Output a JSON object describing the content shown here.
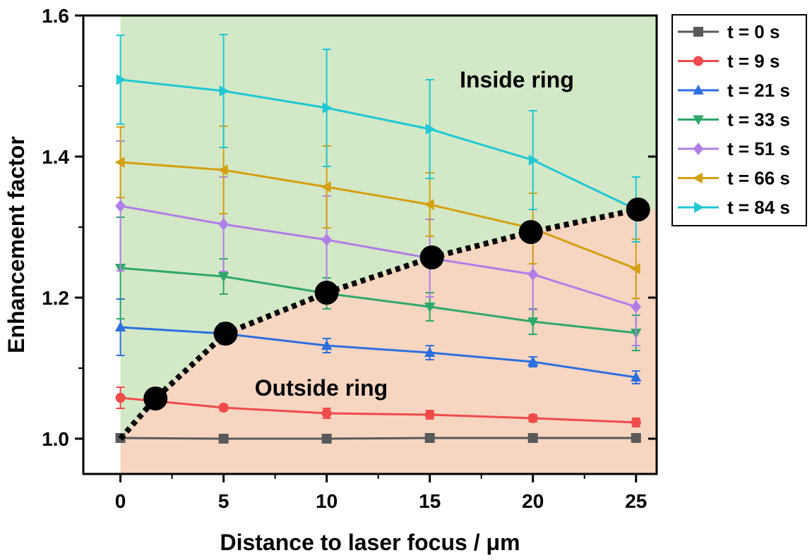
{
  "chart_data": {
    "type": "line",
    "xlabel": "Distance to laser focus / μm",
    "ylabel": "Enhancement factor",
    "xlim": [
      -1.8,
      26
    ],
    "ylim": [
      0.95,
      1.6
    ],
    "x": [
      0,
      5,
      10,
      15,
      20,
      25
    ],
    "x_ticks": [
      "0",
      "5",
      "10",
      "15",
      "20",
      "25"
    ],
    "y_ticks": [
      "1.0",
      "1.2",
      "1.4",
      "1.6"
    ],
    "grid": false,
    "legend_position": "outside-right",
    "series": [
      {
        "name": "t = 0 s",
        "color": "#595959",
        "marker": "square",
        "values": [
          1.001,
          1.0,
          1.0,
          1.001,
          1.001,
          1.001
        ],
        "errors": [
          0.004,
          0.003,
          0.003,
          0.003,
          0.003,
          0.003
        ]
      },
      {
        "name": "t = 9 s",
        "color": "#f04a4a",
        "marker": "circle",
        "values": [
          1.058,
          1.044,
          1.036,
          1.034,
          1.029,
          1.023
        ],
        "errors": [
          0.015,
          0.004,
          0.007,
          0.006,
          0.005,
          0.006
        ]
      },
      {
        "name": "t = 21 s",
        "color": "#2c6fde",
        "marker": "triangle-up",
        "values": [
          1.158,
          1.149,
          1.132,
          1.122,
          1.109,
          1.087
        ],
        "errors": [
          0.04,
          0.015,
          0.01,
          0.01,
          0.007,
          0.009
        ]
      },
      {
        "name": "t = 33 s",
        "color": "#2ea86a",
        "marker": "triangle-down",
        "values": [
          1.242,
          1.23,
          1.206,
          1.187,
          1.166,
          1.15
        ],
        "errors": [
          0.072,
          0.025,
          0.022,
          0.02,
          0.018,
          0.025
        ]
      },
      {
        "name": "t = 51 s",
        "color": "#b07ee8",
        "marker": "diamond",
        "values": [
          1.33,
          1.304,
          1.282,
          1.256,
          1.233,
          1.187
        ],
        "errors": [
          0.092,
          0.067,
          0.062,
          0.055,
          0.05,
          0.055
        ]
      },
      {
        "name": "t = 66 s",
        "color": "#d4a010",
        "marker": "triangle-left",
        "values": [
          1.392,
          1.381,
          1.357,
          1.332,
          1.298,
          1.241
        ],
        "errors": [
          0.05,
          0.062,
          0.058,
          0.045,
          0.05,
          0.042
        ]
      },
      {
        "name": "t = 84 s",
        "color": "#1fc8d4",
        "marker": "triangle-right",
        "values": [
          1.509,
          1.493,
          1.469,
          1.439,
          1.395,
          1.325
        ],
        "errors": [
          0.063,
          0.08,
          0.083,
          0.07,
          0.07,
          0.046
        ]
      }
    ],
    "ring_boundary": {
      "points_x": [
        1.7,
        5.1,
        10.0,
        15.1,
        19.9,
        25.1
      ],
      "points_y": [
        1.057,
        1.149,
        1.207,
        1.257,
        1.293,
        1.325
      ],
      "style": "dotted black curve with large black circle markers"
    },
    "regions": [
      {
        "label": "Inside ring",
        "color": "#d3e8c6"
      },
      {
        "label": "Outside ring",
        "color": "#f6d5c1"
      }
    ]
  }
}
